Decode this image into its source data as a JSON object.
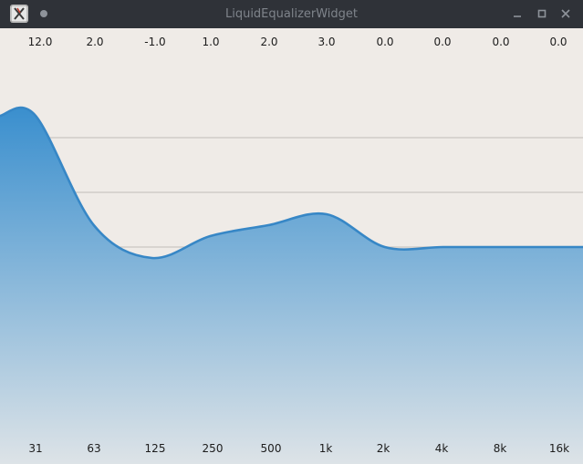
{
  "window": {
    "title": "LiquidEqualizerWidget",
    "controls": [
      "minimize-icon",
      "maximize-icon",
      "close-icon"
    ]
  },
  "colors": {
    "curve": "#3787c6",
    "fill_top": "#3a8fce",
    "fill_bottom": "#dde3e7",
    "background": "#efebe7",
    "grid": "#c9c5c1",
    "titlebar": "#2f3238"
  },
  "bands": [
    {
      "freq_label": "31",
      "freq_hz": 31,
      "gain_label": "12.0",
      "gain": 12.0
    },
    {
      "freq_label": "63",
      "freq_hz": 63,
      "gain_label": "2.0",
      "gain": 2.0
    },
    {
      "freq_label": "125",
      "freq_hz": 125,
      "gain_label": "-1.0",
      "gain": -1.0
    },
    {
      "freq_label": "250",
      "freq_hz": 250,
      "gain_label": "1.0",
      "gain": 1.0
    },
    {
      "freq_label": "500",
      "freq_hz": 500,
      "gain_label": "2.0",
      "gain": 2.0
    },
    {
      "freq_label": "1k",
      "freq_hz": 1000,
      "gain_label": "3.0",
      "gain": 3.0
    },
    {
      "freq_label": "2k",
      "freq_hz": 2000,
      "gain_label": "0.0",
      "gain": 0.0
    },
    {
      "freq_label": "4k",
      "freq_hz": 4000,
      "gain_label": "0.0",
      "gain": 0.0
    },
    {
      "freq_label": "8k",
      "freq_hz": 8000,
      "gain_label": "0.0",
      "gain": 0.0
    },
    {
      "freq_label": "16k",
      "freq_hz": 16000,
      "gain_label": "0.0",
      "gain": 0.0
    }
  ],
  "chart_data": {
    "type": "area",
    "x": [
      "31",
      "63",
      "125",
      "250",
      "500",
      "1k",
      "2k",
      "4k",
      "8k",
      "16k"
    ],
    "values": [
      12.0,
      2.0,
      -1.0,
      1.0,
      2.0,
      3.0,
      0.0,
      0.0,
      0.0,
      0.0
    ],
    "ylim": [
      -15,
      15
    ],
    "grid": true
  }
}
